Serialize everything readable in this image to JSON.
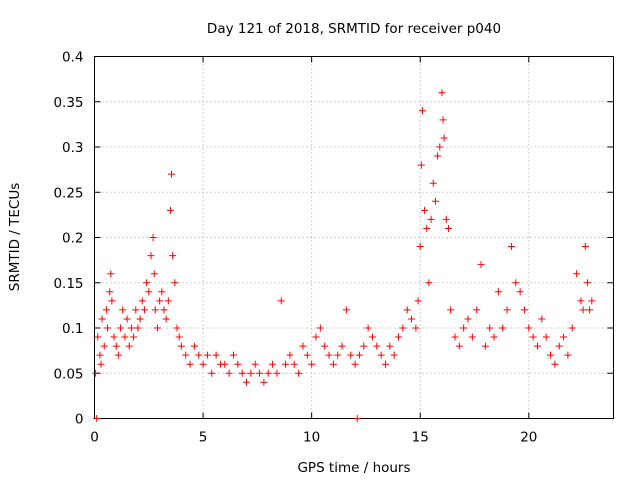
{
  "chart_data": {
    "type": "scatter",
    "title": "Day 121 of 2018, SRMTID for receiver p040",
    "xlabel": "GPS time / hours",
    "ylabel": "SRMTID / TECUs",
    "xlim": [
      0,
      23.9
    ],
    "ylim": [
      0,
      0.4
    ],
    "x_ticks": [
      0,
      5,
      10,
      15,
      20
    ],
    "x_tick_labels": [
      "0",
      "5",
      "10",
      "15",
      "20"
    ],
    "y_ticks": [
      0,
      0.05,
      0.1,
      0.15,
      0.2,
      0.25,
      0.3,
      0.35,
      0.4
    ],
    "y_tick_labels": [
      "0",
      "0.05",
      "0.1",
      "0.15",
      "0.2",
      "0.25",
      "0.3",
      "0.35",
      "0.4"
    ],
    "grid": true,
    "marker": "plus",
    "marker_color": "#ff0000",
    "series": [
      {
        "name": "SRMTID",
        "x": [
          0.05,
          0.15,
          0.25,
          0.3,
          0.35,
          0.45,
          0.55,
          0.6,
          0.7,
          0.75,
          0.8,
          0.9,
          1.0,
          1.1,
          1.2,
          1.3,
          1.4,
          1.5,
          1.6,
          1.7,
          1.8,
          1.9,
          2.0,
          2.1,
          2.2,
          2.3,
          2.4,
          2.5,
          2.6,
          2.7,
          2.75,
          2.8,
          2.9,
          3.0,
          3.1,
          3.2,
          3.3,
          3.4,
          3.5,
          3.55,
          3.6,
          3.7,
          3.8,
          3.9,
          4.0,
          4.2,
          4.4,
          4.6,
          4.8,
          5.0,
          5.2,
          5.4,
          5.6,
          5.8,
          6.0,
          6.2,
          6.4,
          6.6,
          6.8,
          7.0,
          7.2,
          7.4,
          7.6,
          7.8,
          8.0,
          8.2,
          8.4,
          8.6,
          8.8,
          9.0,
          9.2,
          9.4,
          9.6,
          9.8,
          10.0,
          10.2,
          10.4,
          10.6,
          10.8,
          11.0,
          11.2,
          11.4,
          11.6,
          11.8,
          12.0,
          12.2,
          12.4,
          12.6,
          12.8,
          13.0,
          13.2,
          13.4,
          13.6,
          13.8,
          14.0,
          14.2,
          14.4,
          14.6,
          14.8,
          14.9,
          15.0,
          15.05,
          15.1,
          15.2,
          15.3,
          15.4,
          15.5,
          15.6,
          15.7,
          15.8,
          15.9,
          16.0,
          16.05,
          16.1,
          16.2,
          16.3,
          16.4,
          16.6,
          16.8,
          17.0,
          17.2,
          17.4,
          17.6,
          17.8,
          18.0,
          18.2,
          18.4,
          18.6,
          18.8,
          19.0,
          19.2,
          19.4,
          19.6,
          19.8,
          20.0,
          20.2,
          20.4,
          20.6,
          20.8,
          21.0,
          21.2,
          21.4,
          21.6,
          21.8,
          22.0,
          22.2,
          22.4,
          22.5,
          22.6,
          22.7,
          22.8,
          22.9,
          0.1,
          12.1
        ],
        "y": [
          0.05,
          0.09,
          0.07,
          0.06,
          0.11,
          0.08,
          0.12,
          0.1,
          0.14,
          0.16,
          0.13,
          0.09,
          0.08,
          0.07,
          0.1,
          0.12,
          0.09,
          0.11,
          0.08,
          0.1,
          0.09,
          0.12,
          0.1,
          0.11,
          0.13,
          0.12,
          0.15,
          0.14,
          0.18,
          0.2,
          0.16,
          0.12,
          0.1,
          0.13,
          0.14,
          0.12,
          0.11,
          0.13,
          0.23,
          0.27,
          0.18,
          0.15,
          0.1,
          0.09,
          0.08,
          0.07,
          0.06,
          0.08,
          0.07,
          0.06,
          0.07,
          0.05,
          0.07,
          0.06,
          0.06,
          0.05,
          0.07,
          0.06,
          0.05,
          0.04,
          0.05,
          0.06,
          0.05,
          0.04,
          0.05,
          0.06,
          0.05,
          0.13,
          0.06,
          0.07,
          0.06,
          0.05,
          0.08,
          0.07,
          0.06,
          0.09,
          0.1,
          0.08,
          0.07,
          0.06,
          0.07,
          0.08,
          0.12,
          0.07,
          0.06,
          0.07,
          0.08,
          0.1,
          0.09,
          0.08,
          0.07,
          0.06,
          0.08,
          0.07,
          0.09,
          0.1,
          0.12,
          0.11,
          0.1,
          0.13,
          0.19,
          0.28,
          0.34,
          0.23,
          0.21,
          0.15,
          0.22,
          0.26,
          0.24,
          0.29,
          0.3,
          0.36,
          0.33,
          0.31,
          0.22,
          0.21,
          0.12,
          0.09,
          0.08,
          0.1,
          0.11,
          0.09,
          0.12,
          0.17,
          0.08,
          0.1,
          0.09,
          0.14,
          0.1,
          0.12,
          0.19,
          0.15,
          0.14,
          0.12,
          0.1,
          0.09,
          0.08,
          0.11,
          0.09,
          0.07,
          0.06,
          0.08,
          0.09,
          0.07,
          0.1,
          0.16,
          0.13,
          0.12,
          0.19,
          0.15,
          0.12,
          0.13,
          0.0,
          0.0
        ]
      }
    ]
  }
}
